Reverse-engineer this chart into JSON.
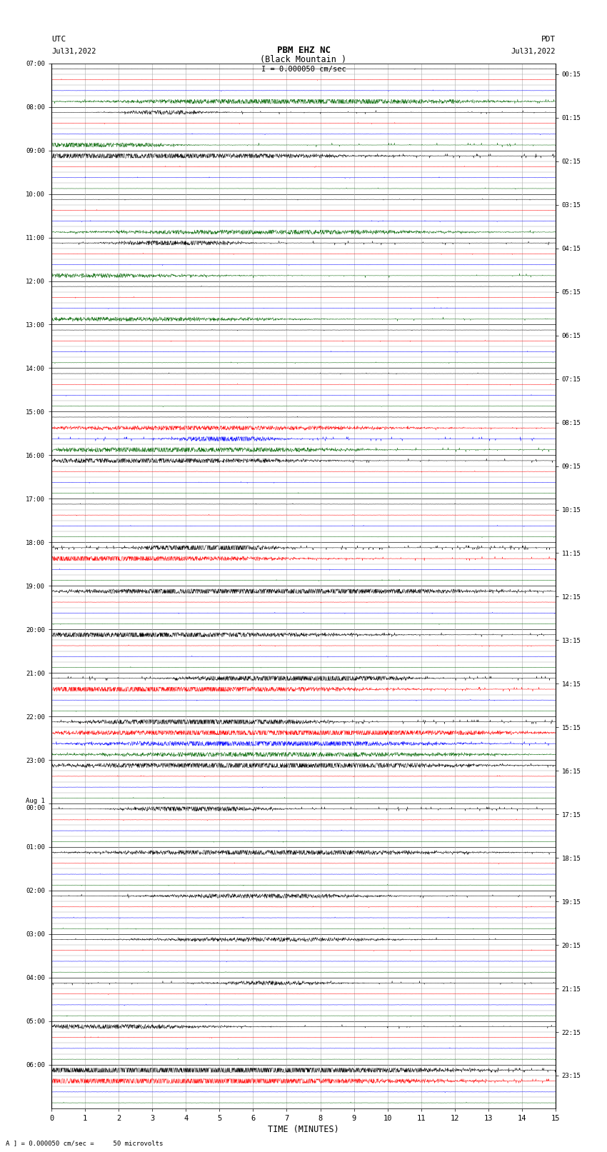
{
  "title_line1": "PBM EHZ NC",
  "title_line2": "(Black Mountain )",
  "scale_label": "I = 0.000050 cm/sec",
  "left_header": "UTC",
  "left_date": "Jul31,2022",
  "right_header": "PDT",
  "right_date": "Jul31,2022",
  "bottom_label": "TIME (MINUTES)",
  "bottom_note": "A ] = 0.000050 cm/sec =     50 microvolts",
  "xlabel_ticks": [
    0,
    1,
    2,
    3,
    4,
    5,
    6,
    7,
    8,
    9,
    10,
    11,
    12,
    13,
    14,
    15
  ],
  "utc_row_labels": [
    "07:00",
    "08:00",
    "09:00",
    "10:00",
    "11:00",
    "12:00",
    "13:00",
    "14:00",
    "15:00",
    "16:00",
    "17:00",
    "18:00",
    "19:00",
    "20:00",
    "21:00",
    "22:00",
    "23:00",
    "Aug 1\n00:00",
    "01:00",
    "02:00",
    "03:00",
    "04:00",
    "05:00",
    "06:00"
  ],
  "pdt_row_labels": [
    "00:15",
    "01:15",
    "02:15",
    "03:15",
    "04:15",
    "05:15",
    "06:15",
    "07:15",
    "08:15",
    "09:15",
    "10:15",
    "11:15",
    "12:15",
    "13:15",
    "14:15",
    "15:15",
    "16:15",
    "17:15",
    "18:15",
    "19:15",
    "20:15",
    "21:15",
    "22:15",
    "23:15"
  ],
  "n_rows": 96,
  "n_hours": 24,
  "n_minutes": 15,
  "bg_color": "#ffffff",
  "trace_colors": [
    "#000000",
    "#ff0000",
    "#0000ff",
    "#006400"
  ],
  "grid_color_major": "#555555",
  "grid_color_minor": "#aaaaaa",
  "noise_base": 0.012,
  "spike_prob": 0.003,
  "spike_amp": 0.25
}
